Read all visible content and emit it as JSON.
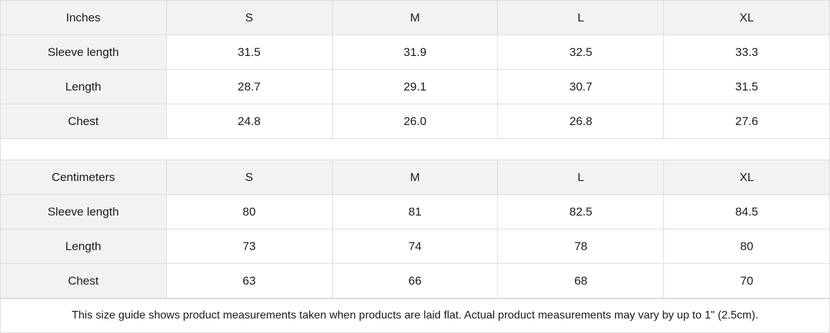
{
  "tables": [
    {
      "unit": "Inches",
      "sizes": [
        "S",
        "M",
        "L",
        "XL"
      ],
      "rows": [
        {
          "label": "Sleeve length",
          "values": [
            "31.5",
            "31.9",
            "32.5",
            "33.3"
          ]
        },
        {
          "label": "Length",
          "values": [
            "28.7",
            "29.1",
            "30.7",
            "31.5"
          ]
        },
        {
          "label": "Chest",
          "values": [
            "24.8",
            "26.0",
            "26.8",
            "27.6"
          ]
        }
      ]
    },
    {
      "unit": "Centimeters",
      "sizes": [
        "S",
        "M",
        "L",
        "XL"
      ],
      "rows": [
        {
          "label": "Sleeve length",
          "values": [
            "80",
            "81",
            "82.5",
            "84.5"
          ]
        },
        {
          "label": "Length",
          "values": [
            "73",
            "74",
            "78",
            "80"
          ]
        },
        {
          "label": "Chest",
          "values": [
            "63",
            "66",
            "68",
            "70"
          ]
        }
      ]
    }
  ],
  "footer_note": "This size guide shows product measurements taken when products are laid flat.  Actual product measurements may vary by up to 1\" (2.5cm).",
  "colors": {
    "header_bg": "#f2f2f2",
    "border": "#dcdcdc"
  }
}
